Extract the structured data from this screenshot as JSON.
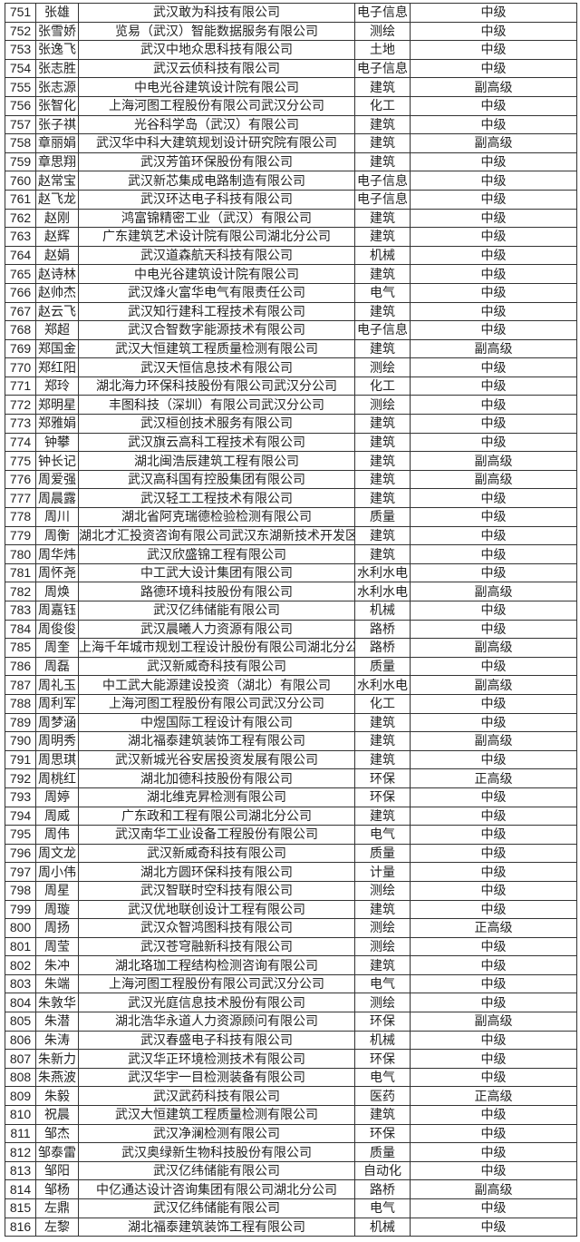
{
  "rows": [
    [
      "751",
      "张雄",
      "武汉敢为科技有限公司",
      "电子信息",
      "中级"
    ],
    [
      "752",
      "张雪娇",
      "览易（武汉）智能数据服务有限公司",
      "测绘",
      "中级"
    ],
    [
      "753",
      "张逸飞",
      "武汉中地众思科技有限公司",
      "土地",
      "中级"
    ],
    [
      "754",
      "张志胜",
      "武汉云侦科技有限公司",
      "电子信息",
      "中级"
    ],
    [
      "755",
      "张志源",
      "中电光谷建筑设计院有限公司",
      "建筑",
      "副高级"
    ],
    [
      "756",
      "张智化",
      "上海河图工程股份有限公司武汉分公司",
      "化工",
      "中级"
    ],
    [
      "757",
      "张子祺",
      "光谷科学岛（武汉）有限公司",
      "建筑",
      "中级"
    ],
    [
      "758",
      "章丽娟",
      "武汉华中科大建筑规划设计研究院有限公司",
      "建筑",
      "副高级"
    ],
    [
      "759",
      "章思翔",
      "武汉芳笛环保股份有限公司",
      "建筑",
      "中级"
    ],
    [
      "760",
      "赵常宝",
      "武汉新芯集成电路制造有限公司",
      "电子信息",
      "中级"
    ],
    [
      "761",
      "赵飞龙",
      "武汉环达电子科技有限公司",
      "电子信息",
      "中级"
    ],
    [
      "762",
      "赵刚",
      "鸿富锦精密工业（武汉）有限公司",
      "建筑",
      "中级"
    ],
    [
      "763",
      "赵辉",
      "广东建筑艺术设计院有限公司湖北分公司",
      "建筑",
      "中级"
    ],
    [
      "764",
      "赵娟",
      "武汉道森航天科技有限公司",
      "机械",
      "中级"
    ],
    [
      "765",
      "赵诗林",
      "中电光谷建筑设计院有限公司",
      "建筑",
      "中级"
    ],
    [
      "766",
      "赵帅杰",
      "武汉烽火富华电气有限责任公司",
      "电气",
      "中级"
    ],
    [
      "767",
      "赵云飞",
      "武汉知行建科工程技术有限公司",
      "建筑",
      "中级"
    ],
    [
      "768",
      "郑超",
      "武汉合智数字能源技术有限公司",
      "电子信息",
      "中级"
    ],
    [
      "769",
      "郑国金",
      "武汉大恒建筑工程质量检测有限公司",
      "建筑",
      "副高级"
    ],
    [
      "770",
      "郑红阳",
      "武汉天恒信息技术有限公司",
      "测绘",
      "中级"
    ],
    [
      "771",
      "郑玲",
      "湖北海力环保科技股份有限公司武汉分公司",
      "化工",
      "中级"
    ],
    [
      "772",
      "郑明星",
      "丰图科技（深圳）有限公司武汉分公司",
      "测绘",
      "中级"
    ],
    [
      "773",
      "郑雅娟",
      "武汉桓创技术服务有限公司",
      "建筑",
      "中级"
    ],
    [
      "774",
      "钟攀",
      "武汉旗云高科工程技术有限公司",
      "建筑",
      "中级"
    ],
    [
      "775",
      "钟长记",
      "湖北闽浩辰建筑工程有限公司",
      "建筑",
      "副高级"
    ],
    [
      "776",
      "周爱强",
      "武汉高科国有控股集团有限公司",
      "建筑",
      "副高级"
    ],
    [
      "777",
      "周晨露",
      "武汉轻工工程技术有限公司",
      "建筑",
      "中级"
    ],
    [
      "778",
      "周川",
      "湖北省阿克瑞德检验检测有限公司",
      "质量",
      "中级"
    ],
    [
      "779",
      "周衡",
      "湖北才汇投资咨询有限公司武汉东湖新技术开发区分公司",
      "建筑",
      "中级"
    ],
    [
      "780",
      "周华炜",
      "武汉欣盛锦工程有限公司",
      "建筑",
      "中级"
    ],
    [
      "781",
      "周怀尧",
      "中工武大设计集团有限公司",
      "水利水电",
      "中级"
    ],
    [
      "782",
      "周焕",
      "路德环境科技股份有限公司",
      "水利水电",
      "副高级"
    ],
    [
      "783",
      "周嘉钰",
      "武汉亿纬储能有限公司",
      "机械",
      "中级"
    ],
    [
      "784",
      "周俊俊",
      "武汉晨曦人力资源有限公司",
      "路桥",
      "中级"
    ],
    [
      "785",
      "周奎",
      "上海千年城市规划工程设计股份有限公司湖北分公司",
      "路桥",
      "副高级"
    ],
    [
      "786",
      "周磊",
      "武汉新威奇科技有限公司",
      "质量",
      "中级"
    ],
    [
      "787",
      "周礼玉",
      "中工武大能源建设投资（湖北）有限公司",
      "水利水电",
      "副高级"
    ],
    [
      "788",
      "周利军",
      "上海河图工程股份有限公司武汉分公司",
      "化工",
      "中级"
    ],
    [
      "789",
      "周梦涵",
      "中煜国际工程设计有限公司",
      "建筑",
      "中级"
    ],
    [
      "790",
      "周明秀",
      "湖北福泰建筑装饰工程有限公司",
      "建筑",
      "副高级"
    ],
    [
      "791",
      "周思琪",
      "武汉新城光谷安居投资发展有限公司",
      "建筑",
      "中级"
    ],
    [
      "792",
      "周桃红",
      "湖北加德科技股份有限公司",
      "环保",
      "正高级"
    ],
    [
      "793",
      "周婷",
      "湖北维克昇检测有限公司",
      "环保",
      "中级"
    ],
    [
      "794",
      "周威",
      "广东政和工程有限公司湖北分公司",
      "建筑",
      "中级"
    ],
    [
      "795",
      "周伟",
      "武汉南华工业设备工程股份有限公司",
      "电气",
      "中级"
    ],
    [
      "796",
      "周文龙",
      "武汉新威奇科技有限公司",
      "质量",
      "中级"
    ],
    [
      "797",
      "周小伟",
      "湖北方圆环保科技有限公司",
      "计量",
      "中级"
    ],
    [
      "798",
      "周星",
      "武汉智联时空科技有限公司",
      "测绘",
      "中级"
    ],
    [
      "799",
      "周璇",
      "武汉优地联创设计工程有限公司",
      "建筑",
      "中级"
    ],
    [
      "800",
      "周扬",
      "武汉众智鸿图科技有限公司",
      "测绘",
      "正高级"
    ],
    [
      "801",
      "周莹",
      "武汉苍穹融新科技有限公司",
      "测绘",
      "中级"
    ],
    [
      "802",
      "朱冲",
      "湖北珞珈工程结构检测咨询有限公司",
      "建筑",
      "中级"
    ],
    [
      "803",
      "朱端",
      "上海河图工程股份有限公司武汉分公司",
      "电气",
      "中级"
    ],
    [
      "804",
      "朱敦华",
      "武汉光庭信息技术股份有限公司",
      "测绘",
      "中级"
    ],
    [
      "805",
      "朱潜",
      "湖北浩华永道人力资源顾问有限公司",
      "环保",
      "副高级"
    ],
    [
      "806",
      "朱涛",
      "武汉春盛电子科技有限公司",
      "机械",
      "中级"
    ],
    [
      "807",
      "朱新力",
      "武汉华正环境检测技术有限公司",
      "环保",
      "中级"
    ],
    [
      "808",
      "朱燕波",
      "武汉华宇一目检测装备有限公司",
      "电气",
      "中级"
    ],
    [
      "809",
      "朱毅",
      "武汉武药科技有限公司",
      "医药",
      "正高级"
    ],
    [
      "810",
      "祝晨",
      "武汉大恒建筑工程质量检测有限公司",
      "建筑",
      "中级"
    ],
    [
      "811",
      "邹杰",
      "武汉净澜检测有限公司",
      "环保",
      "中级"
    ],
    [
      "812",
      "邹泰雷",
      "武汉奥绿新生物科技股份有限公司",
      "质量",
      "中级"
    ],
    [
      "813",
      "邹阳",
      "武汉亿纬储能有限公司",
      "自动化",
      "中级"
    ],
    [
      "814",
      "邹杨",
      "中亿通达设计咨询集团有限公司湖北分公司",
      "路桥",
      "副高级"
    ],
    [
      "815",
      "左鼎",
      "武汉亿纬储能有限公司",
      "电气",
      "中级"
    ],
    [
      "816",
      "左黎",
      "湖北福泰建筑装饰工程有限公司",
      "机械",
      "中级"
    ]
  ]
}
